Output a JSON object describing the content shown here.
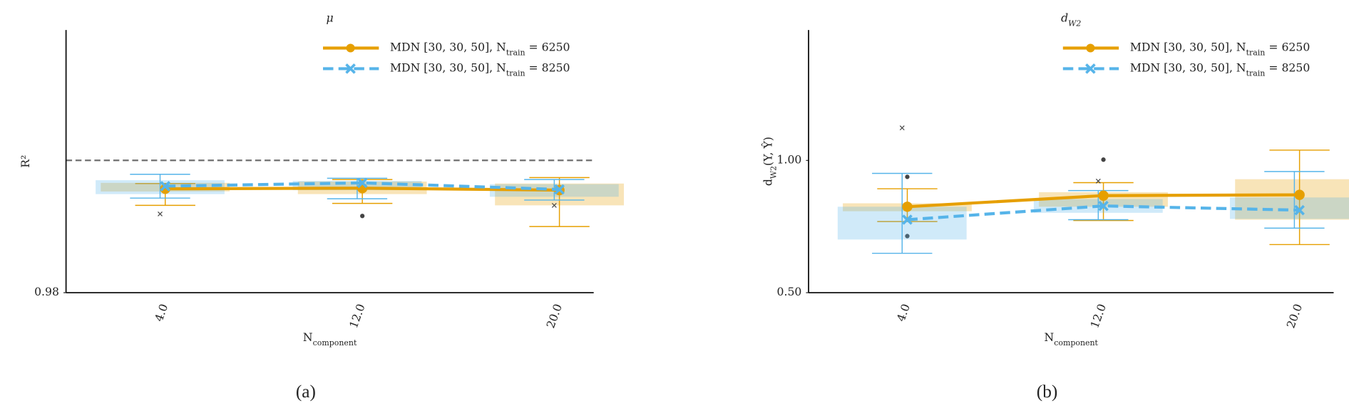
{
  "chart_data": [
    {
      "type": "line",
      "title": "μ",
      "ylabel": "R²",
      "xlabel": "N_component",
      "caption": "(a)",
      "categories": [
        "4.0",
        "12.0",
        "20.0"
      ],
      "ylim": [
        0.98,
        1.0197
      ],
      "yticks": [
        0.98
      ],
      "reference_line": 1.0,
      "legend": "upper right",
      "series": [
        {
          "name": "MDN [30, 30, 50], N_train = 6250",
          "color": "#e69f00",
          "linestyle": "solid",
          "marker": "circle",
          "values": [
            0.9957,
            0.9958,
            0.9955
          ],
          "box_low": [
            0.9953,
            0.9949,
            0.9932
          ],
          "box_high": [
            0.9966,
            0.9968,
            0.9965
          ],
          "whisker_low": [
            0.9932,
            0.9935,
            0.99
          ],
          "whisker_high": [
            0.9965,
            0.9971,
            0.9974
          ],
          "outliers": [
            [],
            [
              0.9916
            ],
            []
          ]
        },
        {
          "name": "MDN [30, 30, 50], N_train = 8250",
          "color": "#56b4e9",
          "linestyle": "dashed",
          "marker": "x",
          "values": [
            0.9961,
            0.9966,
            0.9956
          ],
          "box_low": [
            0.9949,
            0.9955,
            0.9945
          ],
          "box_high": [
            0.997,
            0.9969,
            0.9964
          ],
          "whisker_low": [
            0.9943,
            0.9942,
            0.994
          ],
          "whisker_high": [
            0.9979,
            0.9973,
            0.9971
          ],
          "outliers": [
            [
              0.9919
            ],
            [],
            [
              0.9932
            ]
          ]
        }
      ]
    },
    {
      "type": "line",
      "title": "d_W2",
      "ylabel": "d_W2(Y, Ŷ)",
      "xlabel": "N_component",
      "caption": "(b)",
      "categories": [
        "4.0",
        "12.0",
        "20.0"
      ],
      "ylim": [
        0.5,
        1.493
      ],
      "yticks": [
        {
          "value": 0.5,
          "label": "0.50"
        },
        {
          "value": 1.0,
          "label": "1.00"
        }
      ],
      "legend": "upper right",
      "series": [
        {
          "name": "MDN [30, 30, 50], N_train = 6250",
          "color": "#e69f00",
          "linestyle": "solid",
          "marker": "circle",
          "values": [
            0.825,
            0.867,
            0.87
          ],
          "box_low": [
            0.808,
            0.825,
            0.776
          ],
          "box_high": [
            0.838,
            0.88,
            0.929
          ],
          "whisker_low": [
            0.769,
            0.773,
            0.682
          ],
          "whisker_high": [
            0.893,
            0.916,
            1.039
          ],
          "outliers": [
            [
              0.938,
              0.714
            ],
            [
              1.003
            ],
            []
          ]
        },
        {
          "name": "MDN [30, 30, 50], N_train = 8250",
          "color": "#56b4e9",
          "linestyle": "dashed",
          "marker": "x",
          "values": [
            0.776,
            0.828,
            0.812
          ],
          "box_low": [
            0.701,
            0.802,
            0.779
          ],
          "box_high": [
            0.825,
            0.854,
            0.86
          ],
          "whisker_low": [
            0.649,
            0.776,
            0.744
          ],
          "whisker_high": [
            0.951,
            0.886,
            0.958
          ],
          "outliers": [
            [
              1.123
            ],
            [
              0.922
            ],
            []
          ]
        }
      ]
    }
  ]
}
